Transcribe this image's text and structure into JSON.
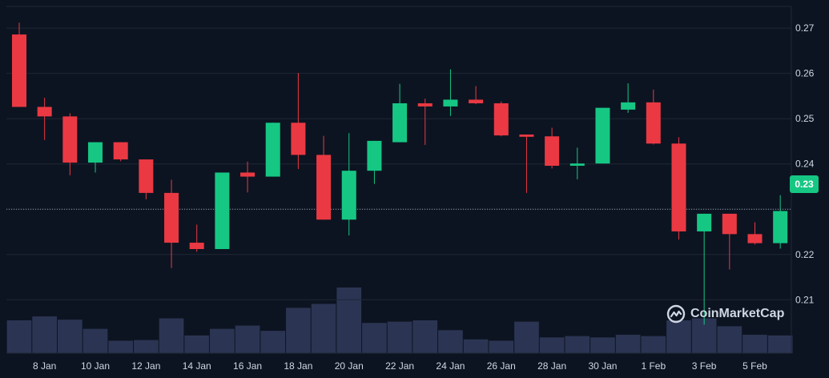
{
  "chart_data": {
    "type": "candlestick",
    "x_tick_labels": [
      "8 Jan",
      "10 Jan",
      "12 Jan",
      "14 Jan",
      "16 Jan",
      "18 Jan",
      "20 Jan",
      "22 Jan",
      "24 Jan",
      "26 Jan",
      "28 Jan",
      "30 Jan",
      "1 Feb",
      "3 Feb",
      "5 Feb"
    ],
    "y_ticks": [
      0.21,
      0.22,
      0.24,
      0.25,
      0.26,
      0.27
    ],
    "y_tick_labels": [
      "0.21",
      "0.22",
      "0.24",
      "0.25",
      "0.26",
      "0.27"
    ],
    "ylim": [
      0.1982,
      0.2748
    ],
    "current_price": 0.23,
    "current_price_label": "0.23",
    "grid": true,
    "colors": {
      "up": "#16c784",
      "down": "#ea3943",
      "volume": "#2b3553",
      "background": "#0d1421",
      "grid": "#1f2636",
      "axis_text": "#cfd6e4"
    },
    "candles": [
      {
        "date": "7 Jan",
        "open": 0.2686,
        "high": 0.2712,
        "low": 0.2526,
        "close": 0.2526
      },
      {
        "date": "8 Jan",
        "open": 0.2526,
        "high": 0.2546,
        "low": 0.2453,
        "close": 0.2505
      },
      {
        "date": "9 Jan",
        "open": 0.2505,
        "high": 0.2512,
        "low": 0.2375,
        "close": 0.2403
      },
      {
        "date": "10 Jan",
        "open": 0.2403,
        "high": 0.2448,
        "low": 0.2381,
        "close": 0.2448
      },
      {
        "date": "11 Jan",
        "open": 0.2448,
        "high": 0.2448,
        "low": 0.2406,
        "close": 0.241
      },
      {
        "date": "12 Jan",
        "open": 0.241,
        "high": 0.241,
        "low": 0.2322,
        "close": 0.2336
      },
      {
        "date": "13 Jan",
        "open": 0.2336,
        "high": 0.2365,
        "low": 0.217,
        "close": 0.2226
      },
      {
        "date": "14 Jan",
        "open": 0.2226,
        "high": 0.2266,
        "low": 0.2206,
        "close": 0.2212
      },
      {
        "date": "15 Jan",
        "open": 0.2212,
        "high": 0.2381,
        "low": 0.2212,
        "close": 0.2381
      },
      {
        "date": "16 Jan",
        "open": 0.2381,
        "high": 0.2405,
        "low": 0.2337,
        "close": 0.2372
      },
      {
        "date": "17 Jan",
        "open": 0.2372,
        "high": 0.2491,
        "low": 0.2372,
        "close": 0.2491
      },
      {
        "date": "18 Jan",
        "open": 0.2491,
        "high": 0.2601,
        "low": 0.2389,
        "close": 0.242
      },
      {
        "date": "19 Jan",
        "open": 0.242,
        "high": 0.2462,
        "low": 0.2277,
        "close": 0.2277
      },
      {
        "date": "20 Jan",
        "open": 0.2277,
        "high": 0.2468,
        "low": 0.2242,
        "close": 0.2385
      },
      {
        "date": "21 Jan",
        "open": 0.2385,
        "high": 0.2451,
        "low": 0.2356,
        "close": 0.2451
      },
      {
        "date": "22 Jan",
        "open": 0.2448,
        "high": 0.2577,
        "low": 0.2448,
        "close": 0.2534
      },
      {
        "date": "23 Jan",
        "open": 0.2534,
        "high": 0.2544,
        "low": 0.2442,
        "close": 0.2527
      },
      {
        "date": "24 Jan",
        "open": 0.2527,
        "high": 0.2609,
        "low": 0.2506,
        "close": 0.2542
      },
      {
        "date": "25 Jan",
        "open": 0.2542,
        "high": 0.2572,
        "low": 0.2532,
        "close": 0.2534
      },
      {
        "date": "26 Jan",
        "open": 0.2534,
        "high": 0.2538,
        "low": 0.2461,
        "close": 0.2463
      },
      {
        "date": "27 Jan",
        "open": 0.2465,
        "high": 0.2465,
        "low": 0.2336,
        "close": 0.246
      },
      {
        "date": "28 Jan",
        "open": 0.2461,
        "high": 0.248,
        "low": 0.239,
        "close": 0.2396
      },
      {
        "date": "29 Jan",
        "open": 0.2396,
        "high": 0.2436,
        "low": 0.2366,
        "close": 0.2401
      },
      {
        "date": "30 Jan",
        "open": 0.2401,
        "high": 0.2524,
        "low": 0.2401,
        "close": 0.2524
      },
      {
        "date": "31 Jan",
        "open": 0.252,
        "high": 0.2578,
        "low": 0.2513,
        "close": 0.2536
      },
      {
        "date": "1 Feb",
        "open": 0.2536,
        "high": 0.2564,
        "low": 0.2443,
        "close": 0.2445
      },
      {
        "date": "2 Feb",
        "open": 0.2445,
        "high": 0.2459,
        "low": 0.2233,
        "close": 0.2251
      },
      {
        "date": "3 Feb",
        "open": 0.2251,
        "high": 0.229,
        "low": 0.2045,
        "close": 0.229
      },
      {
        "date": "4 Feb",
        "open": 0.229,
        "high": 0.229,
        "low": 0.2167,
        "close": 0.2245
      },
      {
        "date": "5 Feb",
        "open": 0.2245,
        "high": 0.2271,
        "low": 0.2222,
        "close": 0.2225
      },
      {
        "date": "6 Feb",
        "open": 0.2225,
        "high": 0.2331,
        "low": 0.2213,
        "close": 0.2296
      }
    ],
    "volumes_relative": [
      0.5,
      0.56,
      0.51,
      0.37,
      0.19,
      0.2,
      0.53,
      0.27,
      0.37,
      0.42,
      0.34,
      0.69,
      0.75,
      1.0,
      0.46,
      0.48,
      0.5,
      0.35,
      0.21,
      0.19,
      0.48,
      0.24,
      0.26,
      0.24,
      0.28,
      0.26,
      0.5,
      0.53,
      0.41,
      0.28,
      0.27
    ]
  },
  "watermark": {
    "text": "CoinMarketCap"
  }
}
